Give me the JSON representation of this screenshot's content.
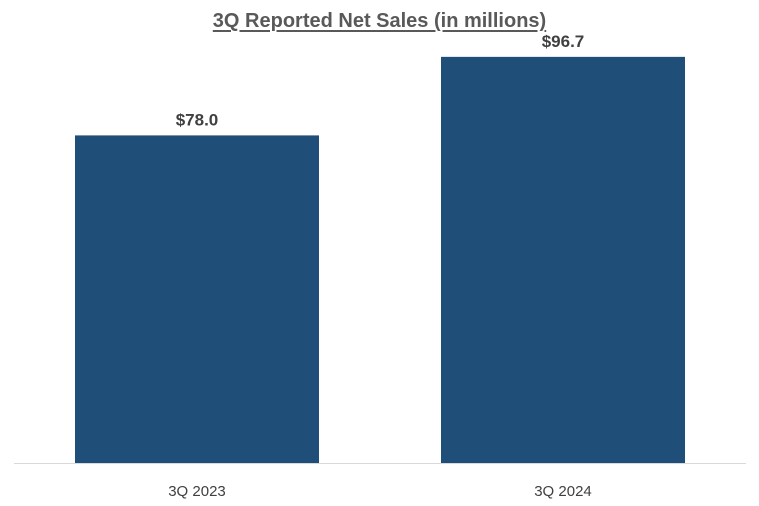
{
  "chart_data": {
    "type": "bar",
    "title": "3Q Reported Net Sales (in millions)",
    "categories": [
      "3Q 2023",
      "3Q 2024"
    ],
    "values": [
      78.0,
      96.7
    ],
    "data_labels": [
      "$78.0",
      "$96.7"
    ],
    "xlabel": "",
    "ylabel": "",
    "ylim": [
      0,
      100
    ],
    "grid": false,
    "legend": "none",
    "bar_color": "#1F4E79",
    "axis_color": "#D9D9D9"
  }
}
